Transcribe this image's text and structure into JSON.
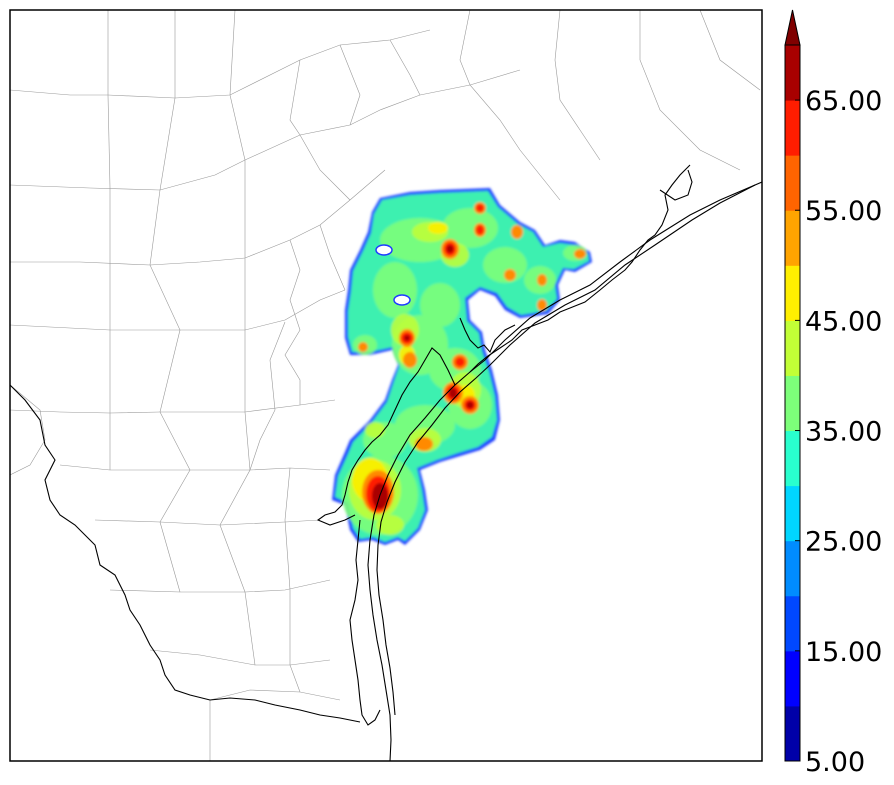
{
  "map": {
    "type": "filled-contour-map",
    "colormap": "jet",
    "extend": "max",
    "legend_placement": "right"
  },
  "colorbar": {
    "levels": [
      5,
      10,
      15,
      20,
      25,
      30,
      35,
      40,
      45,
      50,
      55,
      60,
      65,
      70
    ],
    "colors": [
      "#0000a8",
      "#0000ff",
      "#0048ff",
      "#008cff",
      "#00d6ff",
      "#29ffce",
      "#7dff7a",
      "#c2ff36",
      "#ffef00",
      "#ffa400",
      "#ff6400",
      "#ff1d00",
      "#a80000"
    ],
    "extend_color": "#800000",
    "tick_labels": [
      "5.00",
      "15.00",
      "25.00",
      "35.00",
      "45.00",
      "55.00",
      "65.00"
    ]
  }
}
